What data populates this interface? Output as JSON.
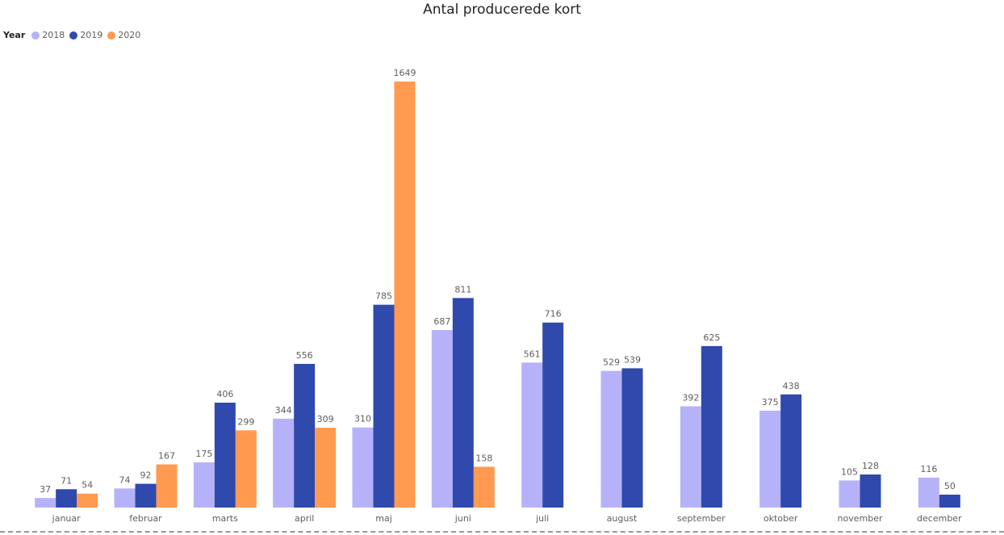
{
  "chart_data": {
    "type": "bar",
    "title": "Antal producerede kort",
    "xlabel": "",
    "ylabel": "",
    "legend": {
      "title": "Year",
      "position": "top-left"
    },
    "categories": [
      "januar",
      "februar",
      "marts",
      "april",
      "maj",
      "juni",
      "juli",
      "august",
      "september",
      "oktober",
      "november",
      "december"
    ],
    "series": [
      {
        "name": "2018",
        "color": "#B6B2FA",
        "values": [
          37,
          74,
          175,
          344,
          310,
          687,
          561,
          529,
          392,
          375,
          105,
          116
        ]
      },
      {
        "name": "2019",
        "color": "#3049AD",
        "values": [
          71,
          92,
          406,
          556,
          785,
          811,
          716,
          539,
          625,
          438,
          128,
          50
        ]
      },
      {
        "name": "2020",
        "color": "#FF9A50",
        "values": [
          54,
          167,
          299,
          309,
          1649,
          158,
          null,
          null,
          null,
          null,
          null,
          null
        ]
      }
    ],
    "ylim": [
      0,
      1649
    ],
    "grid": false,
    "data_labels": true
  }
}
